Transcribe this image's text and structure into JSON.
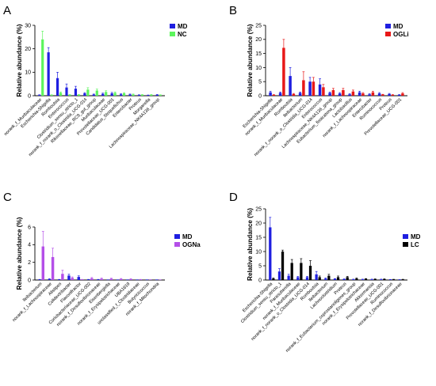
{
  "chart_data": [
    {
      "panel": "A",
      "type": "bar",
      "ylabel": "Relative abundance (%)",
      "ylim": [
        0,
        30
      ],
      "yticks": [
        0,
        10,
        20,
        30
      ],
      "legend": "top-right",
      "categories": [
        "norank_f_Muribaculaceae",
        "Escherichia-Shigella",
        "Romboutsia",
        "Enterococcus",
        "Clostridium_sensu_stricto_1",
        "norank_f_norank_o_Clostridia_UCG-014",
        "Rikenellaceae_RC9_gut_group",
        "Muribaculaceae",
        "Prevotellaceae_UCG-001",
        "Candidatus_Stoquefichus",
        "Enterobacter",
        "Proteus",
        "Morganella",
        "Lachnospiraceae_NK4A136_group"
      ],
      "series": [
        {
          "name": "MD",
          "color": "#1f1fe0",
          "values": [
            0.3,
            18.5,
            7.5,
            3.5,
            3.0,
            1.0,
            0.5,
            0.8,
            1.0,
            0.6,
            0.5,
            0.3,
            0.2,
            0.4
          ],
          "errors": [
            0.1,
            2.0,
            2.5,
            1.5,
            1.0,
            0.3,
            0.2,
            0.3,
            0.4,
            0.2,
            0.2,
            0.1,
            0.1,
            0.1
          ]
        },
        {
          "name": "NC",
          "color": "#5cf55c",
          "values": [
            24.0,
            0.3,
            1.2,
            0.4,
            0.4,
            2.6,
            2.2,
            1.6,
            1.2,
            1.0,
            0.5,
            0.4,
            0.4,
            0.3
          ],
          "errors": [
            3.5,
            0.1,
            0.4,
            0.1,
            0.1,
            0.8,
            0.6,
            0.5,
            0.4,
            0.3,
            0.2,
            0.1,
            0.1,
            0.1
          ]
        }
      ]
    },
    {
      "panel": "B",
      "type": "bar",
      "ylabel": "Relative abundance (%)",
      "ylim": [
        0,
        25
      ],
      "yticks": [
        0,
        5,
        10,
        15,
        20,
        25
      ],
      "legend": "top-right",
      "categories": [
        "Escherichia-Shigella",
        "norank_f_Muribaculaceae",
        "Romboutsia",
        "Ileibacterium",
        "norank_f_norank_o_Clostridia_UCG-014",
        "Enterococcus",
        "Lachnospiraceae_NK4A136_group",
        "Eubacterium_fissicatena_group",
        "Lactobacillus",
        "norank_f_Lachnospiraceae",
        "Enterobacter",
        "Ruminococcus",
        "Proteus",
        "Prevotellaceae_UCG-001"
      ],
      "series": [
        {
          "name": "MD",
          "color": "#1f1fe0",
          "values": [
            1.2,
            1.0,
            7.0,
            1.0,
            5.0,
            4.0,
            1.0,
            0.8,
            0.5,
            1.2,
            0.5,
            0.8,
            0.6,
            0.3
          ],
          "errors": [
            0.4,
            0.3,
            3.0,
            0.3,
            1.5,
            2.0,
            0.3,
            0.3,
            0.2,
            0.4,
            0.2,
            0.3,
            0.2,
            0.1
          ]
        },
        {
          "name": "OGLi",
          "color": "#e81818",
          "values": [
            0.3,
            17.0,
            0.6,
            5.5,
            5.0,
            3.0,
            2.0,
            2.0,
            1.5,
            0.8,
            1.2,
            0.4,
            0.3,
            0.8
          ],
          "errors": [
            0.1,
            3.0,
            0.2,
            3.0,
            1.5,
            1.0,
            0.6,
            0.6,
            0.5,
            0.3,
            0.4,
            0.1,
            0.1,
            0.3
          ]
        }
      ]
    },
    {
      "panel": "C",
      "type": "bar",
      "ylabel": "Relative abundance (%)",
      "ylim": [
        0,
        6
      ],
      "yticks": [
        0,
        2,
        4,
        6
      ],
      "legend": "top-right",
      "categories": [
        "Ileibacterium",
        "norank_f_Lachnospiraceae",
        "Alistipes",
        "Colidextribacter",
        "Flavonifractor",
        "Coriobacteriaceae_UCG-002",
        "norank_f_Desulfovibrionaceae",
        "Eisenbergiella",
        "norank_f_Erysipelotrichaceae",
        "UBA1819",
        "unclassified_f_Clostridiaceae",
        "Butyricicoccus",
        "norank_f_Mitochondria"
      ],
      "series": [
        {
          "name": "MD",
          "color": "#1f1fe0",
          "values": [
            0.05,
            0.1,
            0.05,
            0.5,
            0.35,
            0.05,
            0.05,
            0.02,
            0.02,
            0.02,
            0.02,
            0.02,
            0.02
          ],
          "errors": [
            0.02,
            0.05,
            0.02,
            0.15,
            0.12,
            0.02,
            0.02,
            0.01,
            0.01,
            0.01,
            0.01,
            0.01,
            0.01
          ]
        },
        {
          "name": "OGNa",
          "color": "#b44fe8",
          "values": [
            3.8,
            2.6,
            0.7,
            0.25,
            0.05,
            0.2,
            0.15,
            0.15,
            0.12,
            0.1,
            0.05,
            0.03,
            0.02
          ],
          "errors": [
            1.7,
            1.0,
            0.4,
            0.1,
            0.02,
            0.08,
            0.06,
            0.05,
            0.05,
            0.04,
            0.02,
            0.01,
            0.01
          ]
        }
      ]
    },
    {
      "panel": "D",
      "type": "bar",
      "ylabel": "Relative abundance (%)",
      "ylim": [
        0,
        25
      ],
      "yticks": [
        0,
        5,
        10,
        15,
        20,
        25
      ],
      "legend": "top-right",
      "categories": [
        "Escherichia-Shigella",
        "Clostridium_sensu_stricto_1",
        "Parasutterella",
        "norank_f_Muribaculaceae",
        "norank_f_norank_o_Clostridia_UCG-014",
        "Romboutsia",
        "Ileibacterium",
        "Lachnoclostridium",
        "Proteus",
        "norank_f_Eubacterium_coprostanoligenes_group",
        "norank_f_Erysipelotrichaceae",
        "Akkermansia",
        "Prevotellaceae_UCG-001",
        "Ruminococcus",
        "norank_f_Desulfovibrionaceae"
      ],
      "series": [
        {
          "name": "MD",
          "color": "#1f1fe0",
          "values": [
            18.5,
            3.0,
            1.5,
            1.0,
            1.0,
            2.0,
            0.5,
            0.4,
            0.3,
            0.2,
            0.2,
            0.2,
            0.2,
            0.15,
            0.1
          ],
          "errors": [
            3.5,
            1.0,
            0.5,
            0.3,
            0.3,
            1.0,
            0.2,
            0.1,
            0.1,
            0.1,
            0.1,
            0.1,
            0.1,
            0.05,
            0.05
          ]
        },
        {
          "name": "LC",
          "color": "#000000",
          "values": [
            0.5,
            10.0,
            6.0,
            6.0,
            5.0,
            1.0,
            1.5,
            1.0,
            1.0,
            0.5,
            0.4,
            0.3,
            0.3,
            0.2,
            0.2
          ],
          "errors": [
            0.2,
            0.5,
            1.2,
            1.5,
            1.8,
            0.4,
            0.5,
            0.4,
            0.3,
            0.2,
            0.1,
            0.1,
            0.1,
            0.05,
            0.05
          ]
        }
      ]
    }
  ],
  "panels": {
    "A": {
      "letter": "A"
    },
    "B": {
      "letter": "B"
    },
    "C": {
      "letter": "C"
    },
    "D": {
      "letter": "D"
    }
  }
}
